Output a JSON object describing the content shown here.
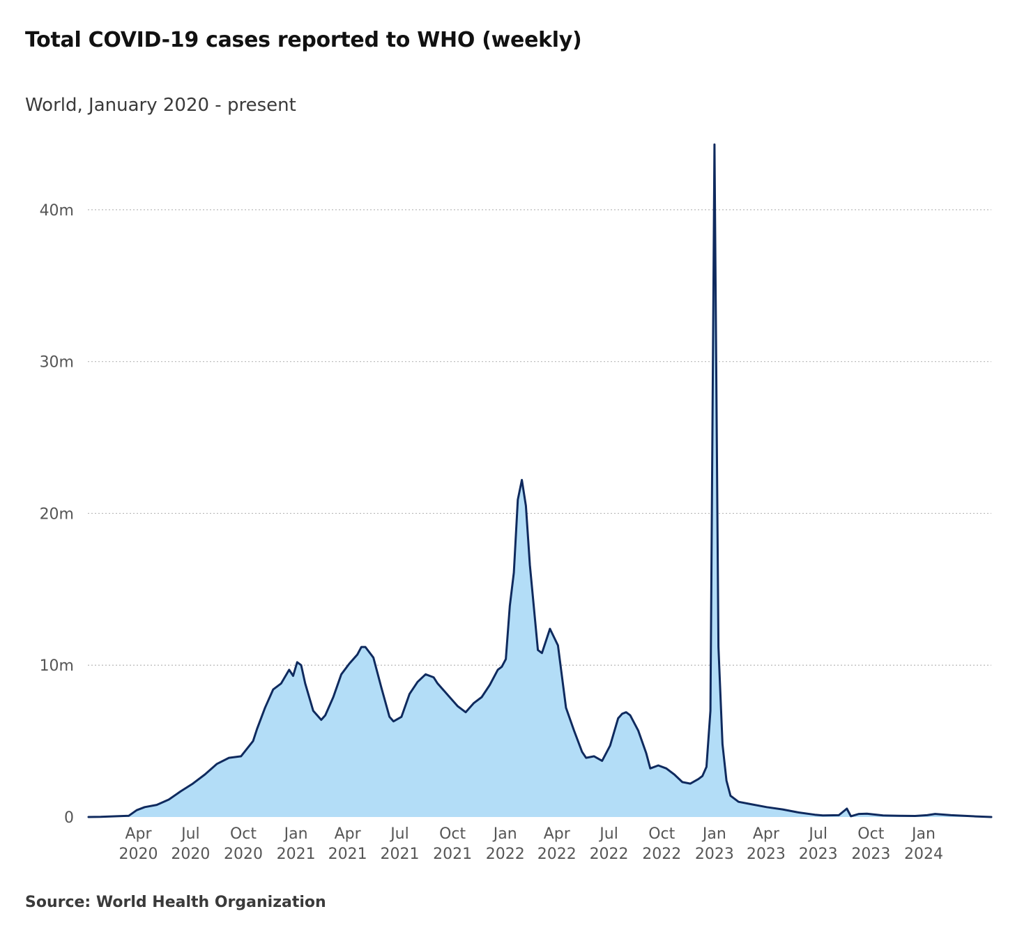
{
  "title": "Total COVID-19 cases reported to WHO (weekly)",
  "subtitle": "World, January 2020 - present",
  "source": "Source: World Health Organization",
  "colors": {
    "line": "#0f2a5e",
    "fill": "#b3ddf7",
    "grid": "#b8b8b8"
  },
  "chart_data": {
    "type": "area",
    "title": "Total COVID-19 cases reported to WHO (weekly)",
    "subtitle": "World, January 2020 - present",
    "xlabel": "",
    "ylabel": "",
    "x_range": [
      "2020-01-05",
      "2024-04-28"
    ],
    "ylim": [
      0,
      45000000
    ],
    "grid": "horizontal dotted",
    "y_ticks": [
      {
        "value": 0,
        "label": "0"
      },
      {
        "value": 10000000,
        "label": "10m"
      },
      {
        "value": 20000000,
        "label": "20m"
      },
      {
        "value": 30000000,
        "label": "30m"
      },
      {
        "value": 40000000,
        "label": "40m"
      }
    ],
    "x_ticks": [
      {
        "date": "2020-04-01",
        "month": "Apr",
        "year": "2020"
      },
      {
        "date": "2020-07-01",
        "month": "Jul",
        "year": "2020"
      },
      {
        "date": "2020-10-01",
        "month": "Oct",
        "year": "2020"
      },
      {
        "date": "2021-01-01",
        "month": "Jan",
        "year": "2021"
      },
      {
        "date": "2021-04-01",
        "month": "Apr",
        "year": "2021"
      },
      {
        "date": "2021-07-01",
        "month": "Jul",
        "year": "2021"
      },
      {
        "date": "2021-10-01",
        "month": "Oct",
        "year": "2021"
      },
      {
        "date": "2022-01-01",
        "month": "Jan",
        "year": "2022"
      },
      {
        "date": "2022-04-01",
        "month": "Apr",
        "year": "2022"
      },
      {
        "date": "2022-07-01",
        "month": "Jul",
        "year": "2022"
      },
      {
        "date": "2022-10-01",
        "month": "Oct",
        "year": "2022"
      },
      {
        "date": "2023-01-01",
        "month": "Jan",
        "year": "2023"
      },
      {
        "date": "2023-04-01",
        "month": "Apr",
        "year": "2023"
      },
      {
        "date": "2023-07-01",
        "month": "Jul",
        "year": "2023"
      },
      {
        "date": "2023-10-01",
        "month": "Oct",
        "year": "2023"
      },
      {
        "date": "2024-01-01",
        "month": "Jan",
        "year": "2024"
      }
    ],
    "series": [
      {
        "x": [
          "2020-01-05",
          "2020-01-26",
          "2020-02-23",
          "2020-03-15",
          "2020-03-29",
          "2020-04-12",
          "2020-05-03",
          "2020-05-24",
          "2020-06-14",
          "2020-07-05",
          "2020-07-26",
          "2020-08-16",
          "2020-09-06",
          "2020-09-27",
          "2020-10-18",
          "2020-10-25",
          "2020-11-08",
          "2020-11-22",
          "2020-12-06",
          "2020-12-20",
          "2020-12-27",
          "2021-01-03",
          "2021-01-10",
          "2021-01-17",
          "2021-01-31",
          "2021-02-14",
          "2021-02-21",
          "2021-03-07",
          "2021-03-21",
          "2021-04-04",
          "2021-04-18",
          "2021-04-25",
          "2021-05-02",
          "2021-05-16",
          "2021-05-30",
          "2021-06-13",
          "2021-06-20",
          "2021-07-04",
          "2021-07-18",
          "2021-08-01",
          "2021-08-15",
          "2021-08-29",
          "2021-09-05",
          "2021-09-26",
          "2021-10-10",
          "2021-10-24",
          "2021-11-07",
          "2021-11-21",
          "2021-12-05",
          "2021-12-19",
          "2021-12-26",
          "2022-01-02",
          "2022-01-09",
          "2022-01-16",
          "2022-01-23",
          "2022-01-30",
          "2022-02-06",
          "2022-02-13",
          "2022-02-27",
          "2022-03-06",
          "2022-03-20",
          "2022-04-03",
          "2022-04-17",
          "2022-05-01",
          "2022-05-15",
          "2022-05-22",
          "2022-06-05",
          "2022-06-19",
          "2022-07-03",
          "2022-07-17",
          "2022-07-24",
          "2022-07-31",
          "2022-08-07",
          "2022-08-21",
          "2022-09-04",
          "2022-09-11",
          "2022-09-25",
          "2022-10-09",
          "2022-10-23",
          "2022-11-06",
          "2022-11-20",
          "2022-12-04",
          "2022-12-11",
          "2022-12-18",
          "2022-12-25",
          "2023-01-01",
          "2023-01-08",
          "2023-01-15",
          "2023-01-22",
          "2023-01-29",
          "2023-02-12",
          "2023-03-05",
          "2023-04-02",
          "2023-04-30",
          "2023-05-28",
          "2023-06-25",
          "2023-07-09",
          "2023-08-06",
          "2023-08-20",
          "2023-08-27",
          "2023-09-10",
          "2023-09-24",
          "2023-10-22",
          "2023-11-19",
          "2023-12-17",
          "2024-01-07",
          "2024-01-21",
          "2024-02-18",
          "2024-03-31",
          "2024-04-28"
        ],
        "values": [
          0,
          10000,
          50000,
          80000,
          450000,
          650000,
          800000,
          1150000,
          1700000,
          2200000,
          2800000,
          3500000,
          3900000,
          4000000,
          5000000,
          5800000,
          7200000,
          8400000,
          8800000,
          9700000,
          9300000,
          10200000,
          10000000,
          8800000,
          7000000,
          6400000,
          6700000,
          7900000,
          9400000,
          10100000,
          10700000,
          11200000,
          11200000,
          10500000,
          8500000,
          6600000,
          6300000,
          6600000,
          8100000,
          8900000,
          9400000,
          9200000,
          8800000,
          7900000,
          7300000,
          6900000,
          7500000,
          7900000,
          8700000,
          9700000,
          9900000,
          10400000,
          13900000,
          16100000,
          20900000,
          22200000,
          20500000,
          16600000,
          11000000,
          10800000,
          12400000,
          11300000,
          7200000,
          5700000,
          4300000,
          3900000,
          4000000,
          3700000,
          4700000,
          6500000,
          6800000,
          6900000,
          6700000,
          5700000,
          4200000,
          3200000,
          3400000,
          3200000,
          2800000,
          2300000,
          2200000,
          2500000,
          2700000,
          3300000,
          7000000,
          44300000,
          11200000,
          4800000,
          2400000,
          1400000,
          1000000,
          850000,
          650000,
          500000,
          300000,
          150000,
          100000,
          120000,
          550000,
          50000,
          200000,
          220000,
          100000,
          80000,
          70000,
          120000,
          200000,
          120000,
          40000,
          0
        ]
      }
    ]
  }
}
